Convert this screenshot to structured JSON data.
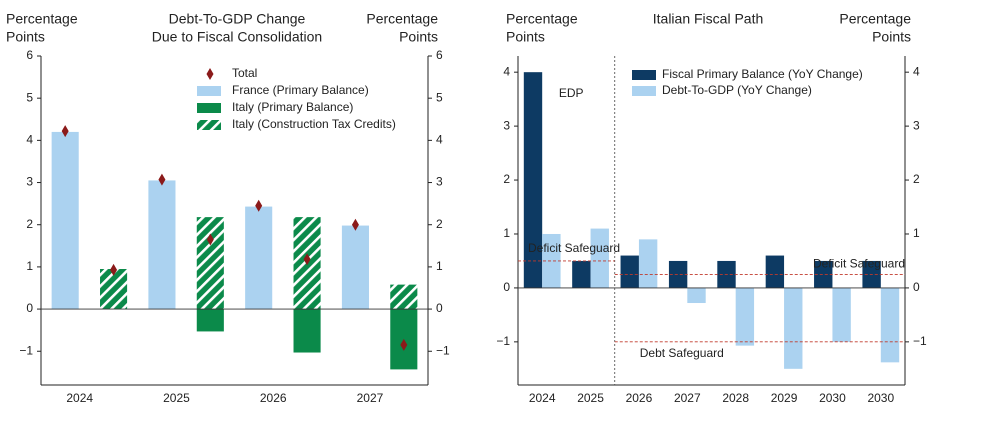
{
  "chart_data": [
    {
      "type": "bar",
      "stacked": true,
      "title": [
        "Debt-To-GDP Change",
        "Due to Fiscal Consolidation"
      ],
      "y_label": [
        "Percentage",
        "Points"
      ],
      "y2_label": [
        "Percentage",
        "Points"
      ],
      "categories": [
        "2024",
        null,
        "2025",
        null,
        "2026",
        null,
        "2027",
        null
      ],
      "series": [
        {
          "name": "Total",
          "marker": "diamond",
          "color": "#8b1a1a",
          "values": [
            4.22,
            0.93,
            3.07,
            1.65,
            2.45,
            1.18,
            2.0,
            -0.85
          ]
        },
        {
          "name": "France (Primary Balance)",
          "color": "#abd2f0",
          "values": [
            4.2,
            null,
            3.05,
            null,
            2.43,
            null,
            1.98,
            null
          ]
        },
        {
          "name": "Italy (Primary Balance)",
          "color": "#0b8a4a",
          "values": [
            null,
            0,
            null,
            -0.53,
            null,
            -1.03,
            null,
            -1.43
          ]
        },
        {
          "name": "Italy (Construction Tax Credits)",
          "color": "#0b8a4a",
          "hatch": true,
          "values": [
            null,
            0.95,
            null,
            2.18,
            null,
            2.18,
            null,
            0.58
          ]
        }
      ],
      "ylim": [
        -1.8,
        6
      ],
      "yticks": [
        {
          "value": -1,
          "label": "−1"
        },
        0,
        1,
        2,
        3,
        4,
        5,
        6
      ]
    },
    {
      "type": "bar",
      "stacked": false,
      "title": [
        "Italian Fiscal Path"
      ],
      "y_label": [
        "Percentage",
        "Points"
      ],
      "y2_label": [
        "Percentage",
        "Points"
      ],
      "categories": [
        "2024",
        "2025",
        "2026",
        "2027",
        "2028",
        "2029",
        "2030",
        "2030"
      ],
      "series": [
        {
          "name": "Fiscal Primary Balance (YoY Change)",
          "color": "#0d3a63",
          "values": [
            4.0,
            0.5,
            0.6,
            0.5,
            0.5,
            0.6,
            0.5,
            0.5
          ]
        },
        {
          "name": "Debt-To-GDP (YoY Change)",
          "color": "#abd2f0",
          "values": [
            1.0,
            1.1,
            0.9,
            -0.28,
            -1.07,
            -1.5,
            -1.0,
            -1.38
          ]
        }
      ],
      "annotation": "EDP",
      "reference_lines": [
        {
          "label": "Deficit Safeguard",
          "value": 0.5,
          "side": "left"
        },
        {
          "label": "Deficit Safeguard",
          "value": 0.25,
          "side": "right"
        },
        {
          "label": "Debt Safeguard",
          "value": -1,
          "side": "right"
        }
      ],
      "ylim": [
        -1.8,
        4.3
      ],
      "yticks": [
        {
          "value": -1,
          "label": "−1"
        },
        0,
        1,
        2,
        3,
        4
      ]
    }
  ]
}
